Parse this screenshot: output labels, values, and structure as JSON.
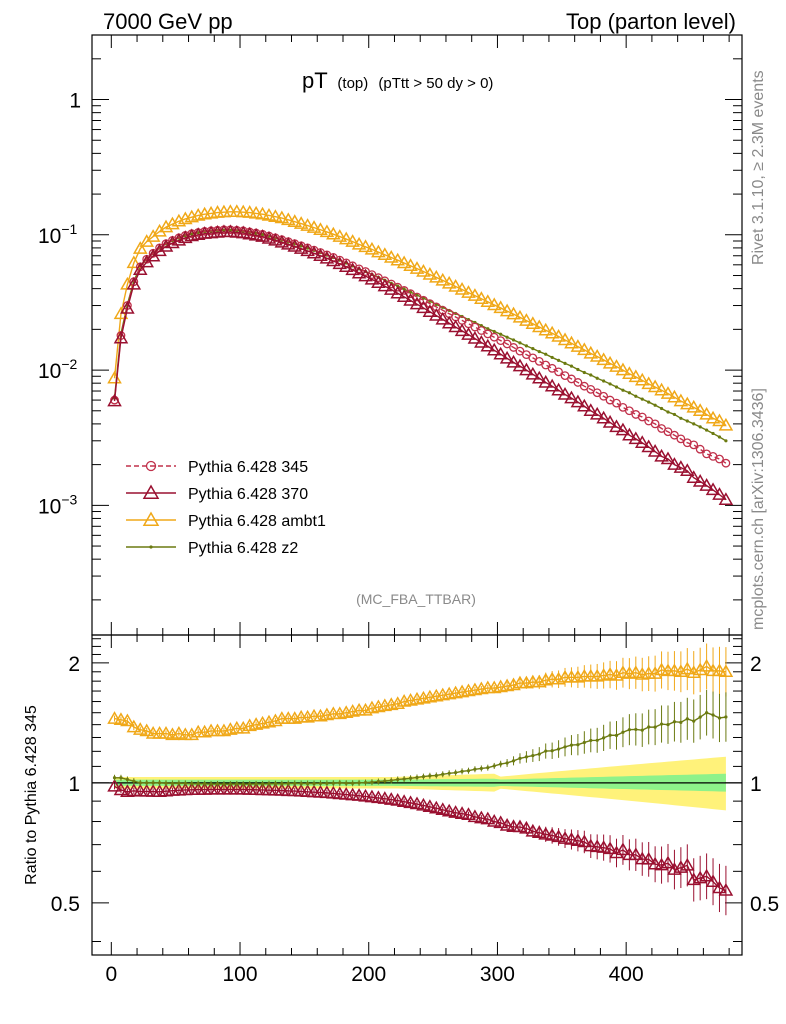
{
  "header": {
    "left": "7000 GeV pp",
    "right": "Top (parton level)"
  },
  "side": {
    "rivet": "Rivet 3.1.10, ≥ 2.3M events",
    "mcplots": "mcplots.cern.ch [arXiv:1306.3436]"
  },
  "plot": {
    "title_main": "pT",
    "title_sub": "(top)",
    "title_cut": "(pTtt > 50 dy > 0)",
    "watermark": "(MC_FBA_TTBAR)",
    "ratio_ylabel": "Ratio to Pythia 6.428 345"
  },
  "chart_data": {
    "type": "line",
    "x_ticks": [
      "0",
      "100",
      "200",
      "300",
      "400"
    ],
    "main_y_ticks": [
      "1",
      "10−1",
      "10−2",
      "10−3"
    ],
    "ratio_y_ticks": [
      "2",
      "1",
      "0.5"
    ],
    "xlim": [
      -15,
      490
    ],
    "main_ylim": [
      0.00011,
      3.0
    ],
    "main_yscale": "log",
    "ratio_ylim": [
      0.37,
      2.35
    ],
    "ratio_yscale": "log",
    "x": [
      2.5,
      7.5,
      12.5,
      17.5,
      22.5,
      27.5,
      32.5,
      37.5,
      42.5,
      47.5,
      52.5,
      57.5,
      62.5,
      67.5,
      72.5,
      77.5,
      82.5,
      87.5,
      92.5,
      97.5,
      102.5,
      107.5,
      112.5,
      117.5,
      122.5,
      127.5,
      132.5,
      137.5,
      142.5,
      147.5,
      152.5,
      157.5,
      162.5,
      167.5,
      172.5,
      177.5,
      182.5,
      187.5,
      192.5,
      197.5,
      202.5,
      207.5,
      212.5,
      217.5,
      222.5,
      227.5,
      232.5,
      237.5,
      242.5,
      247.5,
      252.5,
      257.5,
      262.5,
      267.5,
      272.5,
      277.5,
      282.5,
      287.5,
      292.5,
      297.5,
      302.5,
      307.5,
      312.5,
      317.5,
      322.5,
      327.5,
      332.5,
      337.5,
      342.5,
      347.5,
      352.5,
      357.5,
      362.5,
      367.5,
      372.5,
      377.5,
      382.5,
      387.5,
      392.5,
      397.5,
      402.5,
      407.5,
      412.5,
      417.5,
      422.5,
      427.5,
      432.5,
      437.5,
      442.5,
      447.5,
      452.5,
      457.5,
      462.5,
      467.5,
      472.5,
      477.5
    ],
    "series": [
      {
        "name": "Pythia 6.428 345",
        "color": "#c0304a",
        "marker": "circle",
        "dashed": true,
        "values": [
          0.006,
          0.018,
          0.03,
          0.045,
          0.058,
          0.066,
          0.073,
          0.08,
          0.086,
          0.091,
          0.095,
          0.099,
          0.102,
          0.104,
          0.106,
          0.107,
          0.108,
          0.109,
          0.109,
          0.108,
          0.107,
          0.105,
          0.103,
          0.101,
          0.098,
          0.095,
          0.092,
          0.089,
          0.086,
          0.083,
          0.08,
          0.077,
          0.074,
          0.071,
          0.068,
          0.065,
          0.062,
          0.059,
          0.056,
          0.0535,
          0.0508,
          0.0482,
          0.0457,
          0.0433,
          0.041,
          0.0388,
          0.0367,
          0.0347,
          0.0328,
          0.031,
          0.0293,
          0.0277,
          0.0261,
          0.0247,
          0.0233,
          0.022,
          0.0208,
          0.0196,
          0.0185,
          0.0175,
          0.0165,
          0.0156,
          0.0147,
          0.0138,
          0.013,
          0.0123,
          0.0116,
          0.0109,
          0.0103,
          0.0097,
          0.0091,
          0.0086,
          0.0081,
          0.0076,
          0.0072,
          0.0068,
          0.0064,
          0.006,
          0.0057,
          0.0053,
          0.005,
          0.0047,
          0.0045,
          0.0042,
          0.004,
          0.0037,
          0.0035,
          0.0033,
          0.0031,
          0.0029,
          0.0028,
          0.0026,
          0.0024,
          0.0023,
          0.0022,
          0.00205
        ]
      },
      {
        "name": "Pythia 6.428 370",
        "color": "#9a1030",
        "marker": "triangle",
        "dashed": false,
        "values": [
          0.0059,
          0.0172,
          0.0285,
          0.043,
          0.0552,
          0.0628,
          0.0694,
          0.076,
          0.082,
          0.087,
          0.091,
          0.095,
          0.098,
          0.1,
          0.102,
          0.103,
          0.104,
          0.105,
          0.105,
          0.104,
          0.103,
          0.101,
          0.099,
          0.097,
          0.094,
          0.091,
          0.088,
          0.085,
          0.082,
          0.079,
          0.076,
          0.073,
          0.07,
          0.067,
          0.064,
          0.061,
          0.058,
          0.055,
          0.052,
          0.0495,
          0.0468,
          0.0442,
          0.0417,
          0.0393,
          0.037,
          0.0348,
          0.0327,
          0.0307,
          0.0288,
          0.027,
          0.0253,
          0.0237,
          0.0222,
          0.0208,
          0.0195,
          0.0183,
          0.0171,
          0.016,
          0.015,
          0.014,
          0.0131,
          0.0122,
          0.0114,
          0.0107,
          0.01,
          0.0093,
          0.0087,
          0.0081,
          0.0076,
          0.0071,
          0.0066,
          0.0062,
          0.0058,
          0.0054,
          0.005,
          0.0047,
          0.0044,
          0.0041,
          0.0038,
          0.0036,
          0.0033,
          0.0031,
          0.0029,
          0.0027,
          0.0025,
          0.0023,
          0.0022,
          0.002,
          0.0019,
          0.0018,
          0.0016,
          0.0015,
          0.0014,
          0.0013,
          0.0012,
          0.0011
        ]
      },
      {
        "name": "Pythia 6.428 ambt1",
        "color": "#f0a818",
        "marker": "triangle",
        "dashed": false,
        "values": [
          0.0087,
          0.026,
          0.043,
          0.062,
          0.079,
          0.089,
          0.097,
          0.106,
          0.114,
          0.12,
          0.126,
          0.131,
          0.135,
          0.139,
          0.142,
          0.144,
          0.146,
          0.147,
          0.148,
          0.148,
          0.147,
          0.146,
          0.144,
          0.142,
          0.139,
          0.136,
          0.133,
          0.129,
          0.125,
          0.121,
          0.117,
          0.113,
          0.109,
          0.105,
          0.101,
          0.097,
          0.093,
          0.089,
          0.085,
          0.0815,
          0.078,
          0.0745,
          0.0712,
          0.068,
          0.0649,
          0.0619,
          0.059,
          0.0562,
          0.0535,
          0.0509,
          0.0484,
          0.046,
          0.0437,
          0.0415,
          0.0394,
          0.0374,
          0.0355,
          0.0337,
          0.032,
          0.0303,
          0.0288,
          0.0273,
          0.0259,
          0.0245,
          0.0232,
          0.022,
          0.0208,
          0.0197,
          0.0187,
          0.0177,
          0.0167,
          0.0158,
          0.0149,
          0.0141,
          0.0133,
          0.0126,
          0.0119,
          0.0112,
          0.0106,
          0.01,
          0.0094,
          0.0089,
          0.0084,
          0.0079,
          0.0075,
          0.0071,
          0.0067,
          0.0063,
          0.0059,
          0.0056,
          0.0053,
          0.005,
          0.0047,
          0.0044,
          0.0042,
          0.0039
        ]
      },
      {
        "name": "Pythia 6.428 z2",
        "color": "#6b7a10",
        "marker": "dot",
        "dashed": false,
        "values": [
          0.0062,
          0.0186,
          0.0306,
          0.0455,
          0.0582,
          0.066,
          0.0728,
          0.0797,
          0.0858,
          0.0907,
          0.0948,
          0.0987,
          0.1015,
          0.1035,
          0.1055,
          0.1063,
          0.1074,
          0.1082,
          0.1082,
          0.1073,
          0.1063,
          0.1043,
          0.1024,
          0.1004,
          0.0975,
          0.0945,
          0.0915,
          0.0886,
          0.0857,
          0.0827,
          0.0797,
          0.0767,
          0.0738,
          0.0708,
          0.0679,
          0.065,
          0.0619,
          0.0589,
          0.056,
          0.0536,
          0.051,
          0.0486,
          0.0462,
          0.0439,
          0.0418,
          0.0397,
          0.0377,
          0.0358,
          0.034,
          0.0323,
          0.0306,
          0.0291,
          0.0276,
          0.0262,
          0.0249,
          0.0236,
          0.0225,
          0.0213,
          0.0202,
          0.0193,
          0.0184,
          0.0175,
          0.0167,
          0.0159,
          0.0151,
          0.0144,
          0.0137,
          0.0131,
          0.0124,
          0.0118,
          0.0112,
          0.0107,
          0.0101,
          0.0096,
          0.0092,
          0.0087,
          0.0083,
          0.0079,
          0.0075,
          0.0071,
          0.0068,
          0.0064,
          0.0061,
          0.0058,
          0.0055,
          0.0052,
          0.0049,
          0.0047,
          0.0044,
          0.0042,
          0.004,
          0.0038,
          0.0036,
          0.0034,
          0.0032,
          0.003
        ]
      }
    ],
    "ratios": [
      {
        "name": "Pythia 6.428 370",
        "values": [
          0.98,
          0.96,
          0.95,
          0.955,
          0.952,
          0.952,
          0.951,
          0.95,
          0.953,
          0.956,
          0.958,
          0.96,
          0.961,
          0.962,
          0.962,
          0.963,
          0.963,
          0.963,
          0.963,
          0.963,
          0.963,
          0.962,
          0.961,
          0.96,
          0.959,
          0.958,
          0.957,
          0.955,
          0.954,
          0.952,
          0.95,
          0.948,
          0.946,
          0.944,
          0.941,
          0.938,
          0.935,
          0.932,
          0.929,
          0.925,
          0.921,
          0.917,
          0.913,
          0.908,
          0.903,
          0.897,
          0.891,
          0.885,
          0.878,
          0.871,
          0.864,
          0.856,
          0.849,
          0.842,
          0.837,
          0.832,
          0.822,
          0.816,
          0.811,
          0.8,
          0.794,
          0.782,
          0.776,
          0.775,
          0.769,
          0.756,
          0.75,
          0.743,
          0.738,
          0.732,
          0.725,
          0.721,
          0.716,
          0.711,
          0.694,
          0.691,
          0.688,
          0.683,
          0.667,
          0.679,
          0.66,
          0.66,
          0.644,
          0.643,
          0.625,
          0.622,
          0.629,
          0.606,
          0.613,
          0.621,
          0.571,
          0.577,
          0.583,
          0.565,
          0.545,
          0.537
        ]
      },
      {
        "name": "Pythia 6.428 ambt1",
        "values": [
          1.45,
          1.44,
          1.43,
          1.38,
          1.36,
          1.35,
          1.33,
          1.33,
          1.33,
          1.32,
          1.33,
          1.32,
          1.32,
          1.34,
          1.34,
          1.35,
          1.35,
          1.35,
          1.36,
          1.37,
          1.37,
          1.39,
          1.4,
          1.41,
          1.42,
          1.43,
          1.45,
          1.45,
          1.45,
          1.46,
          1.46,
          1.47,
          1.47,
          1.48,
          1.49,
          1.49,
          1.5,
          1.51,
          1.52,
          1.52,
          1.54,
          1.55,
          1.56,
          1.57,
          1.58,
          1.6,
          1.61,
          1.62,
          1.63,
          1.64,
          1.65,
          1.66,
          1.67,
          1.68,
          1.69,
          1.7,
          1.71,
          1.72,
          1.73,
          1.73,
          1.74,
          1.75,
          1.76,
          1.78,
          1.78,
          1.79,
          1.79,
          1.81,
          1.82,
          1.82,
          1.84,
          1.84,
          1.84,
          1.85,
          1.85,
          1.85,
          1.86,
          1.87,
          1.86,
          1.89,
          1.88,
          1.89,
          1.87,
          1.88,
          1.88,
          1.92,
          1.91,
          1.91,
          1.9,
          1.93,
          1.89,
          1.92,
          1.96,
          1.91,
          1.91,
          1.9
        ]
      },
      {
        "name": "Pythia 6.428 z2",
        "values": [
          1.03,
          1.03,
          1.02,
          1.01,
          1.0,
          1.0,
          1.0,
          1.0,
          0.998,
          0.997,
          0.998,
          0.997,
          0.995,
          0.995,
          0.995,
          0.993,
          0.994,
          0.993,
          0.993,
          0.994,
          0.993,
          0.993,
          0.994,
          0.994,
          0.995,
          0.995,
          0.995,
          0.996,
          0.997,
          0.996,
          0.996,
          0.996,
          0.997,
          0.997,
          0.998,
          1.0,
          0.998,
          0.998,
          1.0,
          1.002,
          1.004,
          1.008,
          1.011,
          1.014,
          1.02,
          1.023,
          1.027,
          1.032,
          1.037,
          1.042,
          1.044,
          1.051,
          1.057,
          1.061,
          1.069,
          1.073,
          1.082,
          1.087,
          1.092,
          1.103,
          1.115,
          1.122,
          1.136,
          1.152,
          1.162,
          1.171,
          1.181,
          1.202,
          1.204,
          1.216,
          1.231,
          1.244,
          1.247,
          1.263,
          1.278,
          1.279,
          1.297,
          1.317,
          1.316,
          1.34,
          1.36,
          1.362,
          1.356,
          1.381,
          1.38,
          1.405,
          1.4,
          1.424,
          1.419,
          1.448,
          1.429,
          1.462,
          1.5,
          1.48,
          1.455,
          1.463
        ]
      }
    ],
    "legend": [
      "Pythia 6.428 345",
      "Pythia 6.428 370",
      "Pythia 6.428 ambt1",
      "Pythia 6.428 z2"
    ]
  }
}
